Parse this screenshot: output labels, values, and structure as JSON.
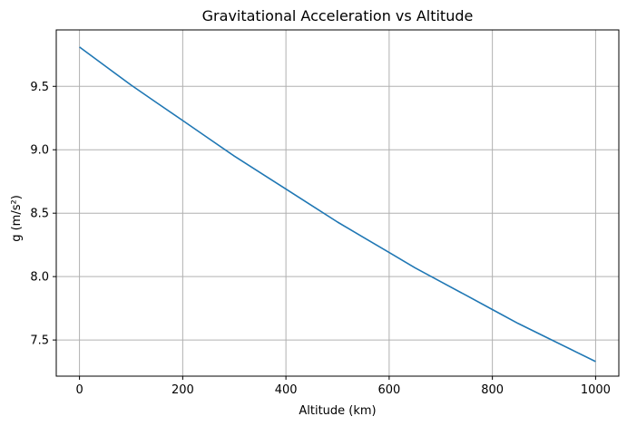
{
  "chart_data": {
    "type": "line",
    "title": "Gravitational Acceleration vs Altitude",
    "xlabel": "Altitude (km)",
    "ylabel": "g (m/s²)",
    "xlim": [
      -45,
      1045
    ],
    "ylim": [
      7.215,
      9.945
    ],
    "xticks": [
      0,
      200,
      400,
      600,
      800,
      1000
    ],
    "xtick_labels": [
      "0",
      "200",
      "400",
      "600",
      "800",
      "1000"
    ],
    "yticks": [
      7.5,
      8.0,
      8.5,
      9.0,
      9.5
    ],
    "ytick_labels": [
      "7.5",
      "8.0",
      "8.5",
      "9.0",
      "9.5"
    ],
    "grid": true,
    "series": [
      {
        "color": "#1f77b4",
        "x": [
          0,
          50,
          100,
          150,
          200,
          250,
          300,
          350,
          400,
          450,
          500,
          550,
          600,
          650,
          700,
          750,
          800,
          850,
          900,
          950,
          1000
        ],
        "y": [
          9.81,
          9.66,
          9.51,
          9.37,
          9.23,
          9.09,
          8.95,
          8.82,
          8.69,
          8.56,
          8.43,
          8.31,
          8.19,
          8.07,
          7.96,
          7.85,
          7.74,
          7.63,
          7.53,
          7.43,
          7.33
        ]
      }
    ]
  }
}
